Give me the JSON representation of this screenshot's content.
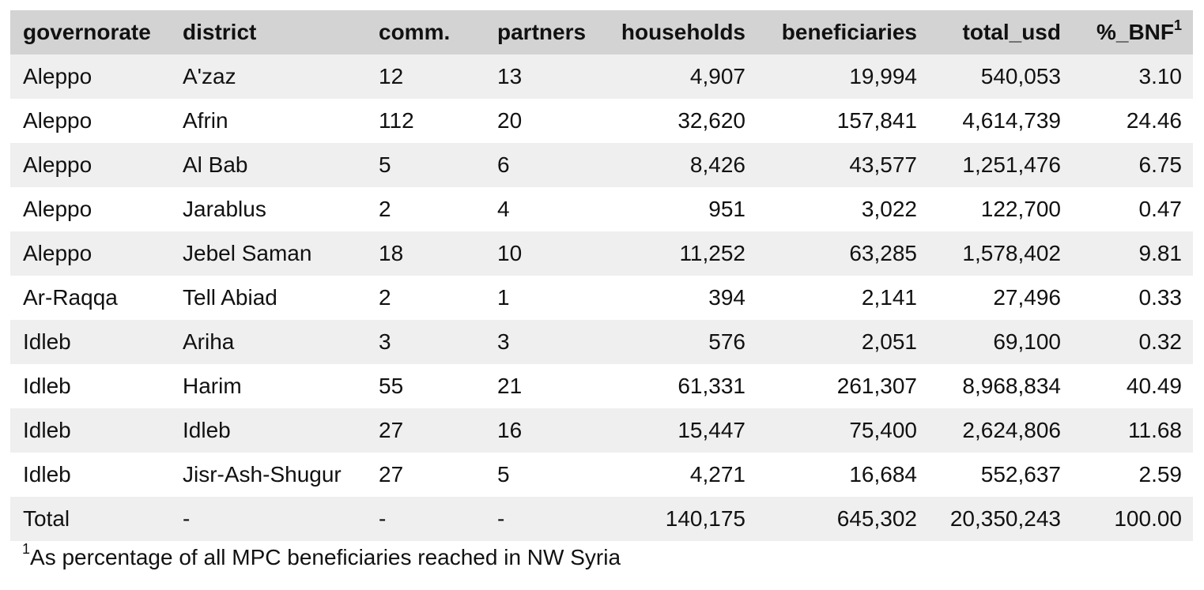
{
  "table": {
    "headers": {
      "governorate": "governorate",
      "district": "district",
      "comm": "comm.",
      "partners": "partners",
      "households": "households",
      "beneficiaries": "beneficiaries",
      "total_usd": "total_usd",
      "pct_bnf": "%_BNF",
      "pct_bnf_sup": "1"
    },
    "rows": [
      {
        "governorate": "Aleppo",
        "district": "A'zaz",
        "comm": "12",
        "partners": "13",
        "households": "4,907",
        "beneficiaries": "19,994",
        "total_usd": "540,053",
        "pct_bnf": "3.10"
      },
      {
        "governorate": "Aleppo",
        "district": "Afrin",
        "comm": "112",
        "partners": "20",
        "households": "32,620",
        "beneficiaries": "157,841",
        "total_usd": "4,614,739",
        "pct_bnf": "24.46"
      },
      {
        "governorate": "Aleppo",
        "district": "Al Bab",
        "comm": "5",
        "partners": "6",
        "households": "8,426",
        "beneficiaries": "43,577",
        "total_usd": "1,251,476",
        "pct_bnf": "6.75"
      },
      {
        "governorate": "Aleppo",
        "district": "Jarablus",
        "comm": "2",
        "partners": "4",
        "households": "951",
        "beneficiaries": "3,022",
        "total_usd": "122,700",
        "pct_bnf": "0.47"
      },
      {
        "governorate": "Aleppo",
        "district": "Jebel Saman",
        "comm": "18",
        "partners": "10",
        "households": "11,252",
        "beneficiaries": "63,285",
        "total_usd": "1,578,402",
        "pct_bnf": "9.81"
      },
      {
        "governorate": "Ar-Raqqa",
        "district": "Tell Abiad",
        "comm": "2",
        "partners": "1",
        "households": "394",
        "beneficiaries": "2,141",
        "total_usd": "27,496",
        "pct_bnf": "0.33"
      },
      {
        "governorate": "Idleb",
        "district": "Ariha",
        "comm": "3",
        "partners": "3",
        "households": "576",
        "beneficiaries": "2,051",
        "total_usd": "69,100",
        "pct_bnf": "0.32"
      },
      {
        "governorate": "Idleb",
        "district": "Harim",
        "comm": "55",
        "partners": "21",
        "households": "61,331",
        "beneficiaries": "261,307",
        "total_usd": "8,968,834",
        "pct_bnf": "40.49"
      },
      {
        "governorate": "Idleb",
        "district": "Idleb",
        "comm": "27",
        "partners": "16",
        "households": "15,447",
        "beneficiaries": "75,400",
        "total_usd": "2,624,806",
        "pct_bnf": "11.68"
      },
      {
        "governorate": "Idleb",
        "district": "Jisr-Ash-Shugur",
        "comm": "27",
        "partners": "5",
        "households": "4,271",
        "beneficiaries": "16,684",
        "total_usd": "552,637",
        "pct_bnf": "2.59"
      }
    ],
    "total": {
      "governorate": "Total",
      "district": "-",
      "comm": "-",
      "partners": "-",
      "households": "140,175",
      "beneficiaries": "645,302",
      "total_usd": "20,350,243",
      "pct_bnf": "100.00"
    }
  },
  "footnote": {
    "marker": "1",
    "text": "As percentage of all MPC beneficiaries reached in NW Syria"
  }
}
